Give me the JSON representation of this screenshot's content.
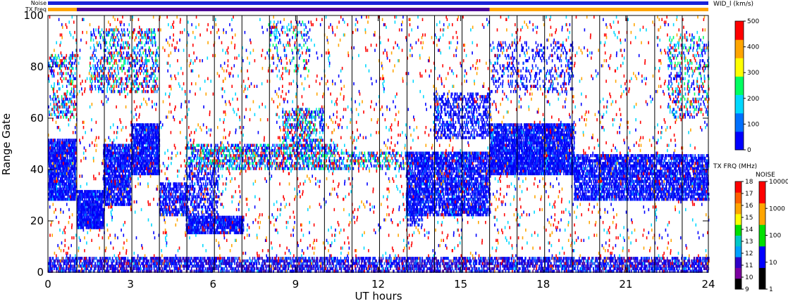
{
  "chart_data": {
    "type": "heatmap",
    "title": "",
    "xlabel": "UT hours",
    "ylabel": "Range Gate",
    "xlim": [
      0,
      24
    ],
    "ylim": [
      0,
      100
    ],
    "xticks": [
      0,
      3,
      6,
      9,
      12,
      15,
      18,
      21,
      24
    ],
    "yticks": [
      0,
      20,
      40,
      60,
      80,
      100
    ],
    "scan_boundaries_ut": [
      1.05,
      2.05,
      3.05,
      4.05,
      5.05,
      6.05,
      7.05,
      8.05,
      9.05,
      10.05,
      11.05,
      12.05,
      13.05,
      14.05,
      15.05,
      16.05,
      17.05,
      18.05,
      19.05,
      20.05,
      21.05,
      22.05,
      23.05
    ],
    "status_bars": {
      "noise_label": "Noise",
      "txfreq_label": "TX Freq",
      "noise_color": "#1a22d8",
      "txfreq_segments": [
        {
          "from": 0,
          "to": 1.05,
          "color": "#ffa500"
        },
        {
          "from": 1.05,
          "to": 16.05,
          "color": "#4b0096"
        },
        {
          "from": 16.05,
          "to": 24,
          "color": "#ffa500"
        }
      ]
    },
    "colorbars": {
      "width": {
        "label": "WID_l (km/s)",
        "ticks": [
          0,
          100,
          200,
          300,
          400,
          500
        ],
        "range": [
          0,
          500
        ],
        "colors": [
          "#0000ff",
          "#0070ff",
          "#00d8ff",
          "#00ff60",
          "#ffff00",
          "#ffa500",
          "#ff0000"
        ]
      },
      "txfreq": {
        "label": "TX FRQ (MHz)",
        "ticks": [
          9,
          10,
          11,
          12,
          13,
          14,
          15,
          16,
          17,
          18
        ],
        "colors": [
          "#000000",
          "#7b00a0",
          "#3000c8",
          "#00a0ff",
          "#00c8c8",
          "#00e000",
          "#ffff00",
          "#ffa500",
          "#ff6000",
          "#ff0000"
        ]
      },
      "noise": {
        "label": "NOISE",
        "ticks": [
          "1",
          "10",
          "100",
          "1000",
          "10000"
        ],
        "colors": [
          "#000000",
          "#0000ff",
          "#00e000",
          "#ffa500",
          "#ff0000"
        ]
      }
    },
    "regions": [
      {
        "x": [
          0.0,
          1.0
        ],
        "y": [
          28,
          52
        ],
        "density": 0.75,
        "palette": "blue"
      },
      {
        "x": [
          1.05,
          2.0
        ],
        "y": [
          17,
          32
        ],
        "density": 0.8,
        "palette": "blue"
      },
      {
        "x": [
          2.0,
          3.0
        ],
        "y": [
          26,
          50
        ],
        "density": 0.65,
        "palette": "blue"
      },
      {
        "x": [
          3.0,
          4.05
        ],
        "y": [
          38,
          58
        ],
        "density": 0.7,
        "palette": "blue"
      },
      {
        "x": [
          1.5,
          4.0
        ],
        "y": [
          70,
          95
        ],
        "density": 0.2,
        "palette": "mixed"
      },
      {
        "x": [
          0.0,
          1.0
        ],
        "y": [
          60,
          85
        ],
        "density": 0.2,
        "palette": "mixed"
      },
      {
        "x": [
          4.05,
          5.0
        ],
        "y": [
          22,
          35
        ],
        "density": 0.4,
        "palette": "blue"
      },
      {
        "x": [
          5.0,
          7.1
        ],
        "y": [
          15,
          22
        ],
        "density": 0.7,
        "palette": "blue"
      },
      {
        "x": [
          5.0,
          6.2
        ],
        "y": [
          22,
          40
        ],
        "density": 0.3,
        "palette": "blue"
      },
      {
        "x": [
          5.0,
          10.5
        ],
        "y": [
          40,
          50
        ],
        "density": 0.35,
        "palette": "mixed"
      },
      {
        "x": [
          8.5,
          10.0
        ],
        "y": [
          48,
          64
        ],
        "density": 0.25,
        "palette": "mixed"
      },
      {
        "x": [
          8.0,
          9.5
        ],
        "y": [
          78,
          98
        ],
        "density": 0.12,
        "palette": "mixed"
      },
      {
        "x": [
          10.5,
          13.0
        ],
        "y": [
          40,
          47
        ],
        "density": 0.25,
        "palette": "mixed"
      },
      {
        "x": [
          13.0,
          16.05
        ],
        "y": [
          22,
          47
        ],
        "density": 0.55,
        "palette": "blue"
      },
      {
        "x": [
          13.0,
          13.6
        ],
        "y": [
          18,
          30
        ],
        "density": 0.35,
        "palette": "blue"
      },
      {
        "x": [
          14.0,
          16.05
        ],
        "y": [
          52,
          70
        ],
        "density": 0.3,
        "palette": "blue"
      },
      {
        "x": [
          16.05,
          19.1
        ],
        "y": [
          38,
          58
        ],
        "density": 0.7,
        "palette": "blue"
      },
      {
        "x": [
          16.05,
          19.1
        ],
        "y": [
          70,
          90
        ],
        "density": 0.12,
        "palette": "blue"
      },
      {
        "x": [
          19.1,
          24.0
        ],
        "y": [
          28,
          46
        ],
        "density": 0.55,
        "palette": "blue"
      },
      {
        "x": [
          22.5,
          24.0
        ],
        "y": [
          60,
          92
        ],
        "density": 0.15,
        "palette": "mixed"
      },
      {
        "x": [
          0.0,
          24.0
        ],
        "y": [
          0,
          6
        ],
        "density": 0.45,
        "palette": "ground"
      },
      {
        "x": [
          0.0,
          24.0
        ],
        "y": [
          0,
          100
        ],
        "density": 0.025,
        "palette": "sparse"
      }
    ]
  }
}
